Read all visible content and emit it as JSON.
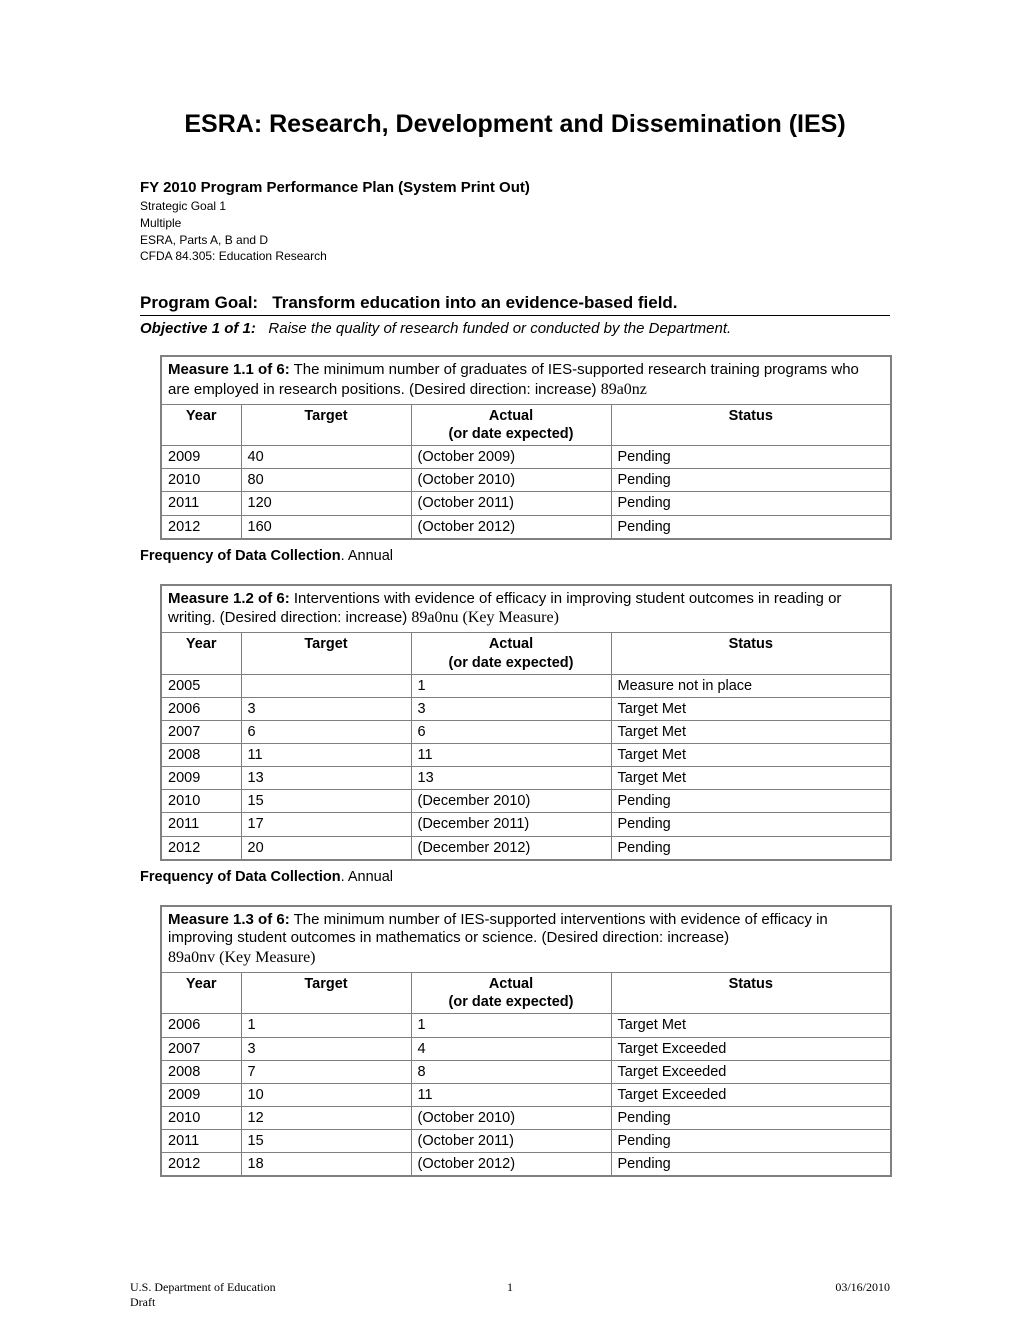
{
  "title": "ESRA: Research, Development and Dissemination (IES)",
  "header": {
    "plan_title": "FY 2010 Program Performance Plan (System Print Out)",
    "line1": "Strategic Goal 1",
    "line2": "Multiple",
    "line3": "ESRA, Parts A, B and D",
    "line4": "CFDA   84.305: Education Research"
  },
  "goal": {
    "label": "Program Goal:",
    "text": "Transform education into an evidence-based field."
  },
  "objective": {
    "label": "Objective 1 of 1:",
    "text": "Raise the quality of research funded or conducted by the Department."
  },
  "columns": {
    "year": "Year",
    "target": "Target",
    "actual_l1": "Actual",
    "actual_l2": "(or date expected)",
    "status": "Status"
  },
  "freq_label": "Frequency of Data Collection",
  "freq_value": ". Annual",
  "m1": {
    "label": "Measure 1.1 of 6:",
    "desc": " The minimum number of graduates of IES-supported research training programs who are employed in research positions.   (Desired direction: increase)   ",
    "code": "89a0nz",
    "rows": [
      {
        "y": "2009",
        "t": "40",
        "a": "(October 2009)",
        "s": "Pending"
      },
      {
        "y": "2010",
        "t": "80",
        "a": "(October 2010)",
        "s": "Pending"
      },
      {
        "y": "2011",
        "t": "120",
        "a": "(October 2011)",
        "s": "Pending"
      },
      {
        "y": "2012",
        "t": "160",
        "a": "(October 2012)",
        "s": "Pending"
      }
    ]
  },
  "m2": {
    "label": "Measure 1.2 of 6:",
    "desc": " Interventions with evidence of efficacy in improving student outcomes in reading or writing.   (Desired direction: increase)   ",
    "code": "89a0nu",
    "key": "  (Key Measure)",
    "rows": [
      {
        "y": "2005",
        "t": "",
        "a": "1",
        "s": "Measure not in place"
      },
      {
        "y": "2006",
        "t": "3",
        "a": "3",
        "s": "Target Met"
      },
      {
        "y": "2007",
        "t": "6",
        "a": "6",
        "s": "Target Met"
      },
      {
        "y": "2008",
        "t": "11",
        "a": "11",
        "s": "Target Met"
      },
      {
        "y": "2009",
        "t": "13",
        "a": "13",
        "s": "Target Met"
      },
      {
        "y": "2010",
        "t": "15",
        "a": "(December 2010)",
        "s": "Pending"
      },
      {
        "y": "2011",
        "t": "17",
        "a": "(December 2011)",
        "s": "Pending"
      },
      {
        "y": "2012",
        "t": "20",
        "a": "(December 2012)",
        "s": "Pending"
      }
    ]
  },
  "m3": {
    "label": "Measure 1.3 of 6:",
    "desc": " The minimum number of IES-supported interventions with evidence of efficacy in improving student outcomes in mathematics or science.   (Desired direction: increase)   ",
    "code": "89a0nv",
    "key": "  (Key Measure)",
    "rows": [
      {
        "y": "2006",
        "t": "1",
        "a": "1",
        "s": "Target Met"
      },
      {
        "y": "2007",
        "t": "3",
        "a": "4",
        "s": "Target Exceeded"
      },
      {
        "y": "2008",
        "t": "7",
        "a": "8",
        "s": "Target Exceeded"
      },
      {
        "y": "2009",
        "t": "10",
        "a": "11",
        "s": "Target Exceeded"
      },
      {
        "y": "2010",
        "t": "12",
        "a": "(October 2010)",
        "s": "Pending"
      },
      {
        "y": "2011",
        "t": "15",
        "a": "(October 2011)",
        "s": "Pending"
      },
      {
        "y": "2012",
        "t": "18",
        "a": "(October 2012)",
        "s": "Pending"
      }
    ]
  },
  "footer": {
    "org": "U.S. Department of Education",
    "draft": "Draft",
    "page": "1",
    "date": "03/16/2010"
  }
}
